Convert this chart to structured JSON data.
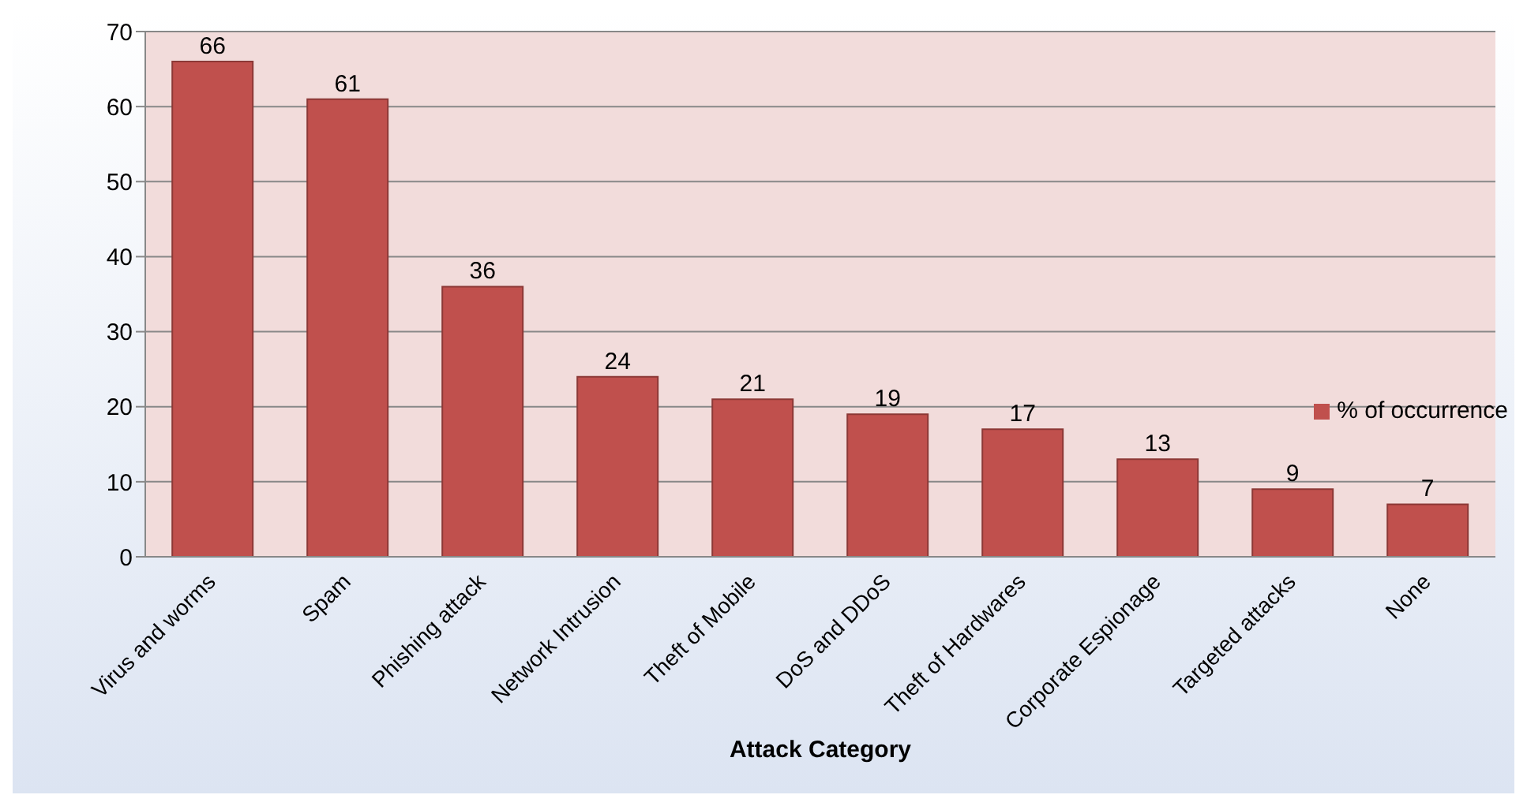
{
  "chart_data": {
    "type": "bar",
    "xlabel": "Attack Category",
    "categories": [
      "Virus and worms",
      "Spam",
      "Phishing attack",
      "Network Intrusion",
      "Theft of Mobile",
      "DoS and DDoS",
      "Theft of Hardwares",
      "Corporate Espionage",
      "Targeted attacks",
      "None"
    ],
    "series": [
      {
        "name": "% of occurrence",
        "color": "#c0504d",
        "values": [
          66,
          61,
          36,
          24,
          21,
          19,
          17,
          13,
          9,
          7
        ]
      }
    ],
    "ylim": [
      0,
      70
    ],
    "yticks": [
      0,
      10,
      20,
      30,
      40,
      50,
      60,
      70
    ],
    "grid": "y",
    "legend": "right",
    "data_labels": true
  }
}
